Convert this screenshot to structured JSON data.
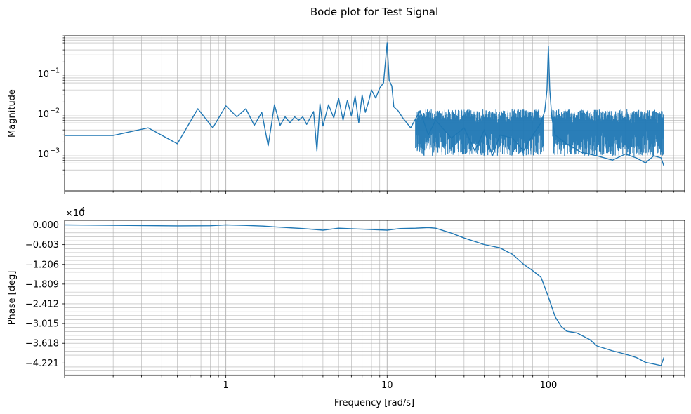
{
  "chart_data": {
    "title": "Bode plot for Test Signal",
    "xlabel": "Frequency [rad/s]",
    "xscale": "log",
    "xlim": [
      0.1,
      700
    ],
    "x_ticks": [
      {
        "value": 1,
        "label": "1"
      },
      {
        "value": 10,
        "label": "10"
      },
      {
        "value": 100,
        "label": "100"
      }
    ],
    "series_color": "#1f77b4",
    "grid": true,
    "panels": [
      {
        "name": "magnitude",
        "type": "line",
        "ylabel": "Magnitude",
        "yscale": "log",
        "ylim": [
          0.00012,
          0.9
        ],
        "y_ticks": [
          {
            "value": 0.001,
            "label": "10",
            "exp": "−3"
          },
          {
            "value": 0.01,
            "label": "10",
            "exp": "−2"
          },
          {
            "value": 0.1,
            "label": "10",
            "exp": "−1"
          }
        ],
        "x": [
          0.1,
          0.2,
          0.33,
          0.5,
          0.67,
          0.83,
          1.0,
          1.17,
          1.33,
          1.5,
          1.67,
          1.83,
          2.0,
          2.17,
          2.33,
          2.5,
          2.67,
          2.83,
          3.0,
          3.17,
          3.5,
          3.67,
          3.83,
          4.0,
          4.33,
          4.67,
          5.0,
          5.33,
          5.67,
          6.0,
          6.33,
          6.67,
          7.0,
          7.33,
          7.67,
          8.0,
          8.5,
          9.0,
          9.5,
          10.0,
          10.3,
          10.7,
          11.0,
          11.7,
          12.5,
          14.0,
          16.0,
          18.0,
          20.0,
          25.0,
          30.0,
          35.0,
          40.0,
          45.0,
          50.0,
          60.0,
          70.0,
          80.0,
          90.0,
          95.0,
          98.0,
          100.0,
          102.0,
          105.0,
          110.0,
          130.0,
          160.0,
          200.0,
          250.0,
          300.0,
          350.0,
          400.0,
          450.0,
          500.0,
          520.0
        ],
        "values": [
          0.0029,
          0.0029,
          0.0045,
          0.0018,
          0.0135,
          0.0045,
          0.016,
          0.0085,
          0.0135,
          0.0052,
          0.011,
          0.0016,
          0.017,
          0.0052,
          0.0085,
          0.006,
          0.0085,
          0.007,
          0.0085,
          0.0055,
          0.0115,
          0.0012,
          0.018,
          0.005,
          0.017,
          0.008,
          0.025,
          0.007,
          0.022,
          0.009,
          0.028,
          0.006,
          0.03,
          0.011,
          0.02,
          0.04,
          0.025,
          0.045,
          0.06,
          0.6,
          0.07,
          0.05,
          0.015,
          0.012,
          0.008,
          0.0045,
          0.012,
          0.003,
          0.007,
          0.0025,
          0.0045,
          0.0012,
          0.004,
          0.0009,
          0.003,
          0.0025,
          0.0012,
          0.003,
          0.006,
          0.012,
          0.04,
          0.5,
          0.04,
          0.008,
          0.003,
          0.0018,
          0.0011,
          0.0009,
          0.0007,
          0.001,
          0.0008,
          0.0006,
          0.0009,
          0.0008,
          0.0005
        ],
        "band_x_range": [
          15,
          520
        ],
        "band_upper": 0.013,
        "band_lower": 0.0009
      },
      {
        "name": "phase",
        "type": "line",
        "ylabel": "Phase [deg]",
        "offset_text": "×10",
        "offset_exp": "4",
        "ylim": [
          -46000,
          1400
        ],
        "y_ticks": [
          {
            "value": 0,
            "label": "0.000"
          },
          {
            "value": -6030,
            "label": "−0.603"
          },
          {
            "value": -12060,
            "label": "−1.206"
          },
          {
            "value": -18090,
            "label": "−1.809"
          },
          {
            "value": -24120,
            "label": "−2.412"
          },
          {
            "value": -30150,
            "label": "−3.015"
          },
          {
            "value": -36180,
            "label": "−3.618"
          },
          {
            "value": -42210,
            "label": "−4.221"
          }
        ],
        "x": [
          0.1,
          0.5,
          0.8,
          1.0,
          1.3,
          1.7,
          2.0,
          3.0,
          4.0,
          5.0,
          7.0,
          10.0,
          12.0,
          15.0,
          18.0,
          20.0,
          25.0,
          30.0,
          40.0,
          50.0,
          60.0,
          70.0,
          80.0,
          90.0,
          100.0,
          110.0,
          120.0,
          130.0,
          150.0,
          180.0,
          200.0,
          250.0,
          300.0,
          350.0,
          400.0,
          450.0,
          500.0,
          520.0
        ],
        "values": [
          0,
          -300,
          -250,
          0,
          -150,
          -350,
          -600,
          -1100,
          -1600,
          -1000,
          -1300,
          -1600,
          -1100,
          -1000,
          -800,
          -1000,
          -2500,
          -4000,
          -6000,
          -7000,
          -9000,
          -12000,
          -14000,
          -16000,
          -22000,
          -28000,
          -31000,
          -32500,
          -33000,
          -35000,
          -37000,
          -38500,
          -39500,
          -40500,
          -42000,
          -42500,
          -43000,
          -40500
        ]
      }
    ]
  }
}
